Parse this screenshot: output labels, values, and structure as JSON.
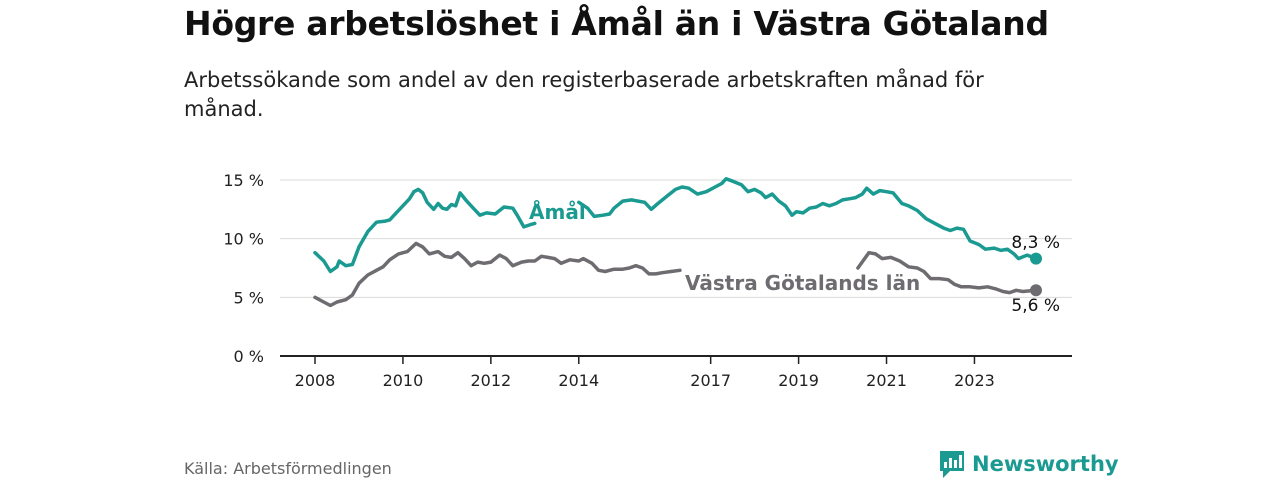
{
  "header": {
    "title": "Högre arbetslöshet i Åmål än i Västra Götaland",
    "subtitle": "Arbetssökande som andel av den registerbaserade arbetskraften månad för månad."
  },
  "footer": {
    "source": "Källa: Arbetsförmedlingen",
    "brand": "Newsworthy"
  },
  "colors": {
    "amal": "#1a9a91",
    "vg": "#6e6c70",
    "axis": "#222222",
    "grid": "#d9d9d9"
  },
  "chart_data": {
    "type": "line",
    "title": "Högre arbetslöshet i Åmål än i Västra Götaland",
    "xlabel": "",
    "ylabel": "",
    "xlim": [
      2008,
      2024.75
    ],
    "ylim": [
      0,
      15
    ],
    "y_ticks": [
      0,
      5,
      10,
      15
    ],
    "y_tick_labels": [
      "0 %",
      "5 %",
      "10 %",
      "15 %"
    ],
    "x_ticks": [
      2008,
      2010,
      2012,
      2014,
      2017,
      2019,
      2021,
      2023
    ],
    "x_tick_labels": [
      "2008",
      "2010",
      "2012",
      "2014",
      "2017",
      "2019",
      "2021",
      "2023"
    ],
    "grid": true,
    "series": [
      {
        "name": "Åmål",
        "label": "Åmål",
        "end_label": "8,3 %",
        "segments": [
          [
            [
              2008.0,
              8.8
            ],
            [
              2008.2,
              8.1
            ],
            [
              2008.35,
              7.2
            ],
            [
              2008.5,
              7.6
            ],
            [
              2008.55,
              8.1
            ],
            [
              2008.7,
              7.7
            ],
            [
              2008.85,
              7.8
            ],
            [
              2009.0,
              9.3
            ],
            [
              2009.2,
              10.6
            ],
            [
              2009.4,
              11.4
            ],
            [
              2009.6,
              11.5
            ],
            [
              2009.7,
              11.6
            ],
            [
              2009.8,
              12.0
            ],
            [
              2010.0,
              12.8
            ],
            [
              2010.15,
              13.4
            ],
            [
              2010.25,
              14.0
            ],
            [
              2010.35,
              14.2
            ],
            [
              2010.45,
              13.9
            ],
            [
              2010.55,
              13.1
            ],
            [
              2010.7,
              12.5
            ],
            [
              2010.8,
              13.0
            ],
            [
              2010.9,
              12.6
            ],
            [
              2011.0,
              12.5
            ],
            [
              2011.1,
              12.9
            ],
            [
              2011.2,
              12.8
            ],
            [
              2011.3,
              13.9
            ],
            [
              2011.45,
              13.2
            ],
            [
              2011.6,
              12.6
            ],
            [
              2011.75,
              12.0
            ],
            [
              2011.9,
              12.2
            ],
            [
              2012.1,
              12.1
            ],
            [
              2012.3,
              12.7
            ],
            [
              2012.5,
              12.6
            ],
            [
              2012.6,
              12.0
            ],
            [
              2012.75,
              11.0
            ],
            [
              2012.9,
              11.2
            ],
            [
              2013.0,
              11.3
            ]
          ],
          [
            [
              2014.0,
              13.1
            ],
            [
              2014.2,
              12.6
            ],
            [
              2014.35,
              11.9
            ],
            [
              2014.55,
              12.0
            ],
            [
              2014.7,
              12.1
            ],
            [
              2014.8,
              12.6
            ],
            [
              2015.0,
              13.2
            ],
            [
              2015.2,
              13.3
            ],
            [
              2015.35,
              13.2
            ],
            [
              2015.5,
              13.1
            ],
            [
              2015.65,
              12.5
            ],
            [
              2015.8,
              13.0
            ],
            [
              2016.0,
              13.6
            ],
            [
              2016.2,
              14.2
            ],
            [
              2016.35,
              14.4
            ],
            [
              2016.5,
              14.3
            ],
            [
              2016.7,
              13.8
            ],
            [
              2016.9,
              14.0
            ],
            [
              2017.1,
              14.4
            ],
            [
              2017.25,
              14.7
            ],
            [
              2017.35,
              15.1
            ],
            [
              2017.5,
              14.9
            ],
            [
              2017.7,
              14.6
            ],
            [
              2017.85,
              14.0
            ],
            [
              2018.0,
              14.2
            ],
            [
              2018.15,
              13.9
            ],
            [
              2018.25,
              13.5
            ],
            [
              2018.4,
              13.8
            ],
            [
              2018.55,
              13.2
            ],
            [
              2018.7,
              12.8
            ],
            [
              2018.85,
              12.0
            ],
            [
              2018.95,
              12.3
            ],
            [
              2019.1,
              12.2
            ],
            [
              2019.25,
              12.6
            ],
            [
              2019.4,
              12.7
            ],
            [
              2019.55,
              13.0
            ],
            [
              2019.7,
              12.8
            ],
            [
              2019.85,
              13.0
            ],
            [
              2020.0,
              13.3
            ],
            [
              2020.15,
              13.4
            ],
            [
              2020.3,
              13.5
            ],
            [
              2020.45,
              13.8
            ],
            [
              2020.55,
              14.3
            ],
            [
              2020.7,
              13.8
            ],
            [
              2020.85,
              14.1
            ],
            [
              2021.0,
              14.0
            ],
            [
              2021.15,
              13.9
            ],
            [
              2021.35,
              13.0
            ],
            [
              2021.5,
              12.8
            ],
            [
              2021.7,
              12.4
            ],
            [
              2021.9,
              11.7
            ],
            [
              2022.1,
              11.3
            ],
            [
              2022.3,
              10.9
            ],
            [
              2022.45,
              10.7
            ],
            [
              2022.6,
              10.9
            ],
            [
              2022.75,
              10.8
            ],
            [
              2022.9,
              9.8
            ],
            [
              2023.1,
              9.5
            ],
            [
              2023.25,
              9.1
            ],
            [
              2023.45,
              9.2
            ],
            [
              2023.6,
              9.0
            ],
            [
              2023.75,
              9.1
            ],
            [
              2023.9,
              8.7
            ],
            [
              2024.0,
              8.3
            ],
            [
              2024.2,
              8.6
            ],
            [
              2024.4,
              8.3
            ]
          ]
        ]
      },
      {
        "name": "Västra Götalands län",
        "label": "Västra Götalands län",
        "end_label": "5,6 %",
        "segments": [
          [
            [
              2008.0,
              5.0
            ],
            [
              2008.15,
              4.7
            ],
            [
              2008.35,
              4.3
            ],
            [
              2008.5,
              4.6
            ],
            [
              2008.7,
              4.8
            ],
            [
              2008.85,
              5.2
            ],
            [
              2009.0,
              6.2
            ],
            [
              2009.2,
              6.9
            ],
            [
              2009.4,
              7.3
            ],
            [
              2009.55,
              7.6
            ],
            [
              2009.7,
              8.2
            ],
            [
              2009.9,
              8.7
            ],
            [
              2010.1,
              8.9
            ],
            [
              2010.3,
              9.6
            ],
            [
              2010.45,
              9.3
            ],
            [
              2010.6,
              8.7
            ],
            [
              2010.8,
              8.9
            ],
            [
              2010.95,
              8.5
            ],
            [
              2011.1,
              8.4
            ],
            [
              2011.25,
              8.8
            ],
            [
              2011.4,
              8.3
            ],
            [
              2011.55,
              7.7
            ],
            [
              2011.7,
              8.0
            ],
            [
              2011.85,
              7.9
            ],
            [
              2012.0,
              8.0
            ],
            [
              2012.2,
              8.6
            ],
            [
              2012.35,
              8.3
            ],
            [
              2012.5,
              7.7
            ],
            [
              2012.7,
              8.0
            ],
            [
              2012.85,
              8.1
            ],
            [
              2013.0,
              8.1
            ],
            [
              2013.15,
              8.5
            ],
            [
              2013.3,
              8.4
            ],
            [
              2013.45,
              8.3
            ],
            [
              2013.6,
              7.9
            ],
            [
              2013.8,
              8.2
            ],
            [
              2014.0,
              8.1
            ],
            [
              2014.1,
              8.3
            ],
            [
              2014.3,
              7.9
            ],
            [
              2014.45,
              7.3
            ],
            [
              2014.6,
              7.2
            ],
            [
              2014.8,
              7.4
            ],
            [
              2015.0,
              7.4
            ],
            [
              2015.15,
              7.5
            ],
            [
              2015.3,
              7.7
            ],
            [
              2015.45,
              7.5
            ],
            [
              2015.6,
              7.0
            ],
            [
              2015.75,
              7.0
            ],
            [
              2015.9,
              7.1
            ],
            [
              2016.1,
              7.2
            ],
            [
              2016.3,
              7.3
            ]
          ],
          [
            [
              2020.35,
              7.5
            ],
            [
              2020.6,
              8.8
            ],
            [
              2020.75,
              8.7
            ],
            [
              2020.9,
              8.3
            ],
            [
              2021.1,
              8.4
            ],
            [
              2021.3,
              8.1
            ],
            [
              2021.5,
              7.6
            ],
            [
              2021.7,
              7.5
            ],
            [
              2021.85,
              7.2
            ],
            [
              2022.0,
              6.6
            ],
            [
              2022.2,
              6.6
            ],
            [
              2022.4,
              6.5
            ],
            [
              2022.55,
              6.1
            ],
            [
              2022.7,
              5.9
            ],
            [
              2022.9,
              5.9
            ],
            [
              2023.1,
              5.8
            ],
            [
              2023.3,
              5.9
            ],
            [
              2023.5,
              5.7
            ],
            [
              2023.65,
              5.5
            ],
            [
              2023.8,
              5.4
            ],
            [
              2023.95,
              5.6
            ],
            [
              2024.1,
              5.5
            ],
            [
              2024.4,
              5.6
            ]
          ]
        ]
      }
    ]
  }
}
